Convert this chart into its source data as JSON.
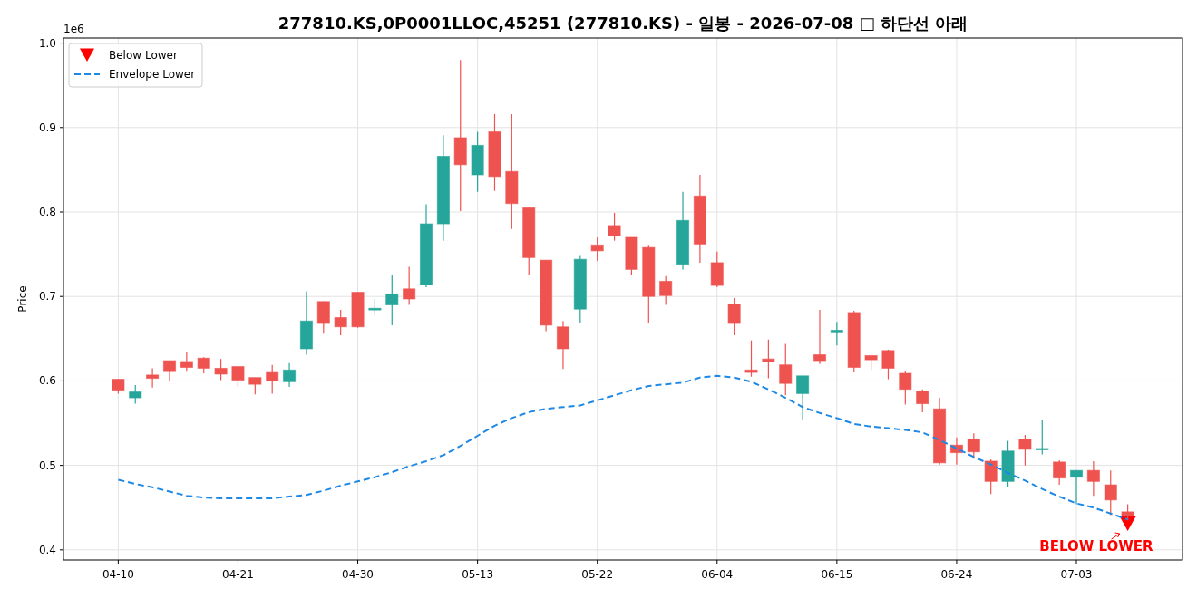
{
  "chart_data": {
    "type": "candlestick",
    "title": "277810.KS,0P0001LLOC,45251 (277810.KS) - 일봉 - 2026-07-08 □ 하단선 아래",
    "ylabel": "Price",
    "categories": [
      "04-10",
      null,
      null,
      null,
      null,
      null,
      null,
      "04-21",
      null,
      null,
      null,
      null,
      null,
      null,
      "04-30",
      null,
      null,
      null,
      null,
      null,
      null,
      "05-13",
      null,
      null,
      null,
      null,
      null,
      null,
      "05-22",
      null,
      null,
      null,
      null,
      null,
      null,
      "06-04",
      null,
      null,
      null,
      null,
      null,
      null,
      "06-15",
      null,
      null,
      null,
      null,
      null,
      null,
      "06-24",
      null,
      null,
      null,
      null,
      null,
      null,
      "07-03",
      null,
      null,
      null
    ],
    "ohlc": [
      [
        0.602,
        0.602,
        0.585,
        0.589
      ],
      [
        0.58,
        0.595,
        0.573,
        0.587
      ],
      [
        0.607,
        0.615,
        0.592,
        0.603
      ],
      [
        0.624,
        0.624,
        0.6,
        0.611
      ],
      [
        0.623,
        0.634,
        0.611,
        0.616
      ],
      [
        0.627,
        0.628,
        0.609,
        0.615
      ],
      [
        0.615,
        0.626,
        0.601,
        0.608
      ],
      [
        0.617,
        0.617,
        0.593,
        0.601
      ],
      [
        0.604,
        0.604,
        0.584,
        0.596
      ],
      [
        0.61,
        0.619,
        0.585,
        0.6
      ],
      [
        0.599,
        0.621,
        0.593,
        0.613
      ],
      [
        0.638,
        0.706,
        0.631,
        0.671
      ],
      [
        0.694,
        0.694,
        0.656,
        0.668
      ],
      [
        0.675,
        0.684,
        0.654,
        0.664
      ],
      [
        0.705,
        0.705,
        0.663,
        0.664
      ],
      [
        0.684,
        0.697,
        0.678,
        0.686
      ],
      [
        0.69,
        0.726,
        0.666,
        0.703
      ],
      [
        0.709,
        0.735,
        0.69,
        0.697
      ],
      [
        0.714,
        0.809,
        0.711,
        0.786
      ],
      [
        0.786,
        0.891,
        0.766,
        0.866
      ],
      [
        0.888,
        0.98,
        0.801,
        0.856
      ],
      [
        0.844,
        0.895,
        0.824,
        0.879
      ],
      [
        0.895,
        0.916,
        0.825,
        0.842
      ],
      [
        0.848,
        0.916,
        0.78,
        0.81
      ],
      [
        0.805,
        0.805,
        0.725,
        0.746
      ],
      [
        0.743,
        0.743,
        0.659,
        0.666
      ],
      [
        0.664,
        0.671,
        0.614,
        0.638
      ],
      [
        0.685,
        0.749,
        0.669,
        0.744
      ],
      [
        0.761,
        0.77,
        0.742,
        0.754
      ],
      [
        0.784,
        0.799,
        0.766,
        0.772
      ],
      [
        0.77,
        0.77,
        0.725,
        0.732
      ],
      [
        0.758,
        0.761,
        0.669,
        0.7
      ],
      [
        0.718,
        0.724,
        0.69,
        0.701
      ],
      [
        0.738,
        0.824,
        0.732,
        0.79
      ],
      [
        0.819,
        0.844,
        0.74,
        0.762
      ],
      [
        0.74,
        0.753,
        0.711,
        0.713
      ],
      [
        0.691,
        0.698,
        0.654,
        0.668
      ],
      [
        0.613,
        0.648,
        0.605,
        0.61
      ],
      [
        0.626,
        0.649,
        0.603,
        0.623
      ],
      [
        0.619,
        0.644,
        0.583,
        0.597
      ],
      [
        0.585,
        0.606,
        0.554,
        0.606
      ],
      [
        0.631,
        0.684,
        0.62,
        0.624
      ],
      [
        0.658,
        0.67,
        0.642,
        0.66
      ],
      [
        0.681,
        0.683,
        0.61,
        0.616
      ],
      [
        0.63,
        0.63,
        0.613,
        0.625
      ],
      [
        0.636,
        0.637,
        0.602,
        0.615
      ],
      [
        0.609,
        0.612,
        0.572,
        0.59
      ],
      [
        0.588,
        0.59,
        0.563,
        0.573
      ],
      [
        0.567,
        0.58,
        0.501,
        0.503
      ],
      [
        0.524,
        0.533,
        0.501,
        0.515
      ],
      [
        0.531,
        0.538,
        0.508,
        0.516
      ],
      [
        0.505,
        0.507,
        0.466,
        0.481
      ],
      [
        0.481,
        0.529,
        0.474,
        0.517
      ],
      [
        0.531,
        0.536,
        0.5,
        0.519
      ],
      [
        0.519,
        0.554,
        0.513,
        0.52
      ],
      [
        0.504,
        0.506,
        0.477,
        0.485
      ],
      [
        0.486,
        0.494,
        0.454,
        0.494
      ],
      [
        0.494,
        0.505,
        0.464,
        0.481
      ],
      [
        0.477,
        0.494,
        0.441,
        0.459
      ],
      [
        0.445,
        0.454,
        0.435,
        0.44
      ]
    ],
    "colors": [
      "#ef5350",
      "#26a69a",
      "#ef5350",
      "#ef5350",
      "#ef5350",
      "#ef5350",
      "#ef5350",
      "#ef5350",
      "#ef5350",
      "#ef5350",
      "#26a69a",
      "#26a69a",
      "#ef5350",
      "#ef5350",
      "#ef5350",
      "#26a69a",
      "#26a69a",
      "#ef5350",
      "#26a69a",
      "#26a69a",
      "#ef5350",
      "#26a69a",
      "#ef5350",
      "#ef5350",
      "#ef5350",
      "#ef5350",
      "#ef5350",
      "#26a69a",
      "#ef5350",
      "#ef5350",
      "#ef5350",
      "#ef5350",
      "#ef5350",
      "#26a69a",
      "#ef5350",
      "#ef5350",
      "#ef5350",
      "#ef5350",
      "#ef5350",
      "#ef5350",
      "#26a69a",
      "#ef5350",
      "#26a69a",
      "#ef5350",
      "#ef5350",
      "#ef5350",
      "#ef5350",
      "#ef5350",
      "#ef5350",
      "#ef5350",
      "#ef5350",
      "#ef5350",
      "#26a69a",
      "#ef5350",
      "#26a69a",
      "#ef5350",
      "#26a69a",
      "#ef5350",
      "#ef5350",
      "#ef5350"
    ],
    "series": [
      {
        "type": "line",
        "name": "Envelope Lower",
        "color": "#1e88e5",
        "line_style": "dashed",
        "values": [
          0.483,
          0.478,
          0.474,
          0.469,
          0.464,
          0.462,
          0.461,
          0.461,
          0.461,
          0.461,
          0.463,
          0.465,
          0.47,
          0.476,
          0.481,
          0.486,
          0.492,
          0.499,
          0.505,
          0.512,
          0.523,
          0.535,
          0.547,
          0.556,
          0.563,
          0.567,
          0.569,
          0.571,
          0.577,
          0.583,
          0.589,
          0.594,
          0.596,
          0.598,
          0.604,
          0.606,
          0.604,
          0.599,
          0.59,
          0.58,
          0.569,
          0.562,
          0.556,
          0.549,
          0.546,
          0.544,
          0.542,
          0.539,
          0.53,
          0.52,
          0.51,
          0.501,
          0.491,
          0.482,
          0.472,
          0.463,
          0.455,
          0.45,
          0.443,
          0.436
        ]
      },
      {
        "type": "scatter",
        "name": "Below Lower",
        "color": "#ff0000",
        "marker": "triangle",
        "values": [
          null,
          null,
          null,
          null,
          null,
          null,
          null,
          null,
          null,
          null,
          null,
          null,
          null,
          null,
          null,
          null,
          null,
          null,
          null,
          null,
          null,
          null,
          null,
          null,
          null,
          null,
          null,
          null,
          null,
          null,
          null,
          null,
          null,
          null,
          null,
          null,
          null,
          null,
          null,
          null,
          null,
          null,
          null,
          null,
          null,
          null,
          null,
          null,
          null,
          null,
          null,
          null,
          null,
          null,
          null,
          null,
          null,
          null,
          null,
          0.432
        ]
      }
    ],
    "annotations": [
      "1e6",
      "BELOW LOWER"
    ],
    "ylim": [
      0.388,
      1.006
    ],
    "yticks": [
      0.4,
      0.5,
      0.6,
      0.7,
      0.8,
      0.9,
      {
        "value": 1,
        "label": "1.0"
      }
    ],
    "grid": true,
    "legend": "top left"
  }
}
